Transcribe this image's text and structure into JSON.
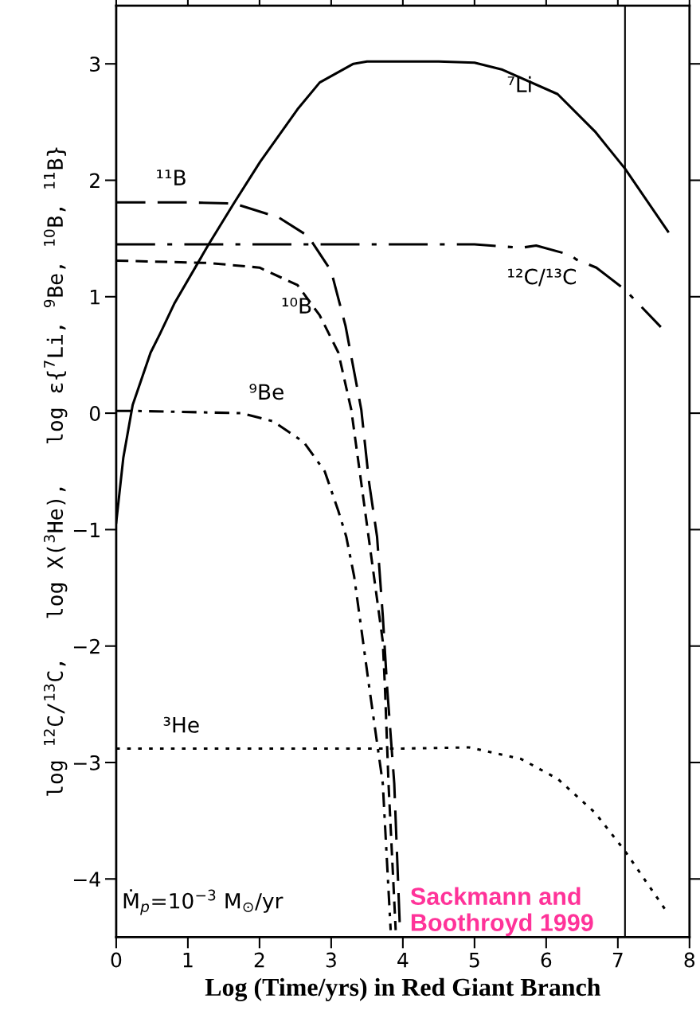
{
  "chart_data": {
    "type": "line",
    "xlabel": "Log (Time/yrs) in Red Giant Branch",
    "ylabel": "log $^{12}$C/$^{13}$C,   log X($^{3}$He),   log ε{$^{7}$Li, $^{9}$Be, $^{10}$B, $^{11}$B}",
    "xlim": [
      0,
      8
    ],
    "ylim": [
      -4.5,
      3.5
    ],
    "xticks": [
      0,
      1,
      2,
      3,
      4,
      5,
      6,
      7,
      8
    ],
    "yticks": [
      {
        "value": -4,
        "label": "−4"
      },
      {
        "value": -3,
        "label": "−3"
      },
      {
        "value": -2,
        "label": "−2"
      },
      {
        "value": -1,
        "label": "−1"
      },
      0,
      1,
      2,
      3
    ],
    "grid": false,
    "legend": false,
    "marker": "none",
    "series": [
      {
        "name": "⁷Li",
        "color": "#000000",
        "line_style": "solid",
        "x": [
          0.0,
          0.1,
          0.23,
          0.48,
          0.61,
          0.81,
          1.29,
          1.65,
          2.01,
          2.53,
          2.84,
          3.31,
          3.5,
          4.0,
          4.5,
          5.0,
          5.39,
          6.16,
          6.68,
          7.1,
          7.7
        ],
        "values": [
          -0.94,
          -0.38,
          0.07,
          0.52,
          0.68,
          0.94,
          1.45,
          1.81,
          2.16,
          2.61,
          2.84,
          3.0,
          3.02,
          3.02,
          3.02,
          3.01,
          2.95,
          2.74,
          2.42,
          2.1,
          1.56
        ]
      },
      {
        "name": "¹¹B",
        "color": "#000000",
        "line_style": "longdash",
        "x": [
          0.0,
          1.0,
          1.65,
          2.27,
          2.68,
          3.0,
          3.2,
          3.42,
          3.53,
          3.64,
          3.72,
          3.78,
          3.88,
          3.96
        ],
        "values": [
          1.81,
          1.81,
          1.8,
          1.68,
          1.52,
          1.22,
          0.75,
          0.03,
          -0.6,
          -1.06,
          -1.74,
          -2.35,
          -3.18,
          -4.44
        ]
      },
      {
        "name": "¹⁰B",
        "color": "#000000",
        "line_style": "dashed",
        "x": [
          0.0,
          1.29,
          2.0,
          2.53,
          2.84,
          3.1,
          3.28,
          3.42,
          3.57,
          3.72,
          3.75,
          3.8,
          3.9
        ],
        "values": [
          1.31,
          1.29,
          1.25,
          1.1,
          0.84,
          0.52,
          0.03,
          -0.6,
          -1.28,
          -1.96,
          -2.35,
          -3.18,
          -4.44
        ]
      },
      {
        "name": "⁹Be",
        "color": "#000000",
        "line_style": "dashdot",
        "x": [
          0.0,
          0.23,
          1.75,
          2.19,
          2.62,
          2.91,
          3.1,
          3.21,
          3.32,
          3.42,
          3.53,
          3.72,
          3.83
        ],
        "values": [
          0.02,
          0.02,
          0.0,
          -0.07,
          -0.25,
          -0.5,
          -0.84,
          -1.06,
          -1.4,
          -1.85,
          -2.35,
          -3.18,
          -4.44
        ]
      },
      {
        "name": "¹²C/¹³C",
        "color": "#000000",
        "line_style": "longdashdot",
        "x": [
          0.0,
          2.0,
          4.0,
          5.0,
          5.65,
          5.86,
          6.33,
          6.42,
          6.7,
          7.1,
          7.6
        ],
        "values": [
          1.45,
          1.45,
          1.45,
          1.45,
          1.42,
          1.44,
          1.36,
          1.32,
          1.25,
          1.06,
          0.74
        ]
      },
      {
        "name": "³He",
        "color": "#000000",
        "line_style": "dotted",
        "x": [
          0.0,
          2.0,
          4.0,
          4.92,
          5.65,
          6.16,
          6.68,
          7.1,
          7.67
        ],
        "values": [
          -2.88,
          -2.88,
          -2.88,
          -2.87,
          -2.97,
          -3.14,
          -3.43,
          -3.76,
          -4.27
        ]
      }
    ],
    "ref_lines": [
      {
        "axis": "x",
        "value": 7.1,
        "color": "#000000",
        "line_style": "solid"
      }
    ],
    "annotations": [
      "Ṁ$_{p}$=10$^{−3}$ M$_{⊙}$/yr",
      "Sackmann and Boothroyd 1999"
    ]
  }
}
